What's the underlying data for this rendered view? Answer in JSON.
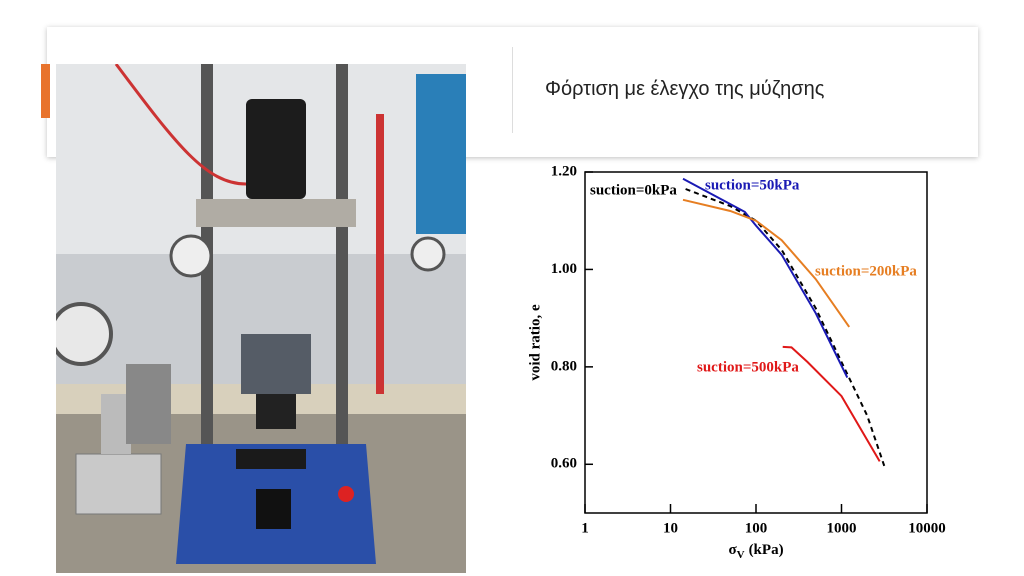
{
  "slide": {
    "title": "Φόρτιση με έλεγχο της μύζησης"
  },
  "chart_data": {
    "type": "line",
    "x_label": {
      "symbol": "σ",
      "subscript": "V",
      "unit": "(kPa)"
    },
    "y_label": "void ratio, e",
    "xscale": "log",
    "xlim": [
      1,
      10000
    ],
    "xticks": [
      1,
      10,
      100,
      1000,
      10000
    ],
    "ylim": [
      0.5,
      1.2
    ],
    "yticks": [
      {
        "value": 0.6,
        "label": "0.60"
      },
      {
        "value": 0.8,
        "label": "0.80"
      },
      {
        "value": 1.0,
        "label": "1.00"
      },
      {
        "value": 1.2,
        "label": "1.20"
      }
    ],
    "series": [
      {
        "name": "suction=0kPa",
        "color": "#000000",
        "dashed": true,
        "x": [
          15,
          50,
          100,
          200,
          500,
          1000,
          2000,
          3200
        ],
        "values": [
          1.165,
          1.13,
          1.1,
          1.04,
          0.92,
          0.81,
          0.7,
          0.594
        ]
      },
      {
        "name": "suction=50kPa",
        "color": "#1a1ab4",
        "dashed": false,
        "x": [
          14,
          74,
          100,
          200,
          500,
          1170
        ],
        "values": [
          1.186,
          1.118,
          1.09,
          1.03,
          0.91,
          0.778
        ]
      },
      {
        "name": "suction=200kPa",
        "color": "#e67e22",
        "dashed": false,
        "x": [
          14,
          50,
          100,
          200,
          500,
          1230
        ],
        "values": [
          1.143,
          1.12,
          1.1,
          1.06,
          0.98,
          0.882
        ]
      },
      {
        "name": "suction=500kPa",
        "color": "#e01818",
        "dashed": false,
        "x": [
          205,
          260,
          400,
          1000,
          2800
        ],
        "values": [
          0.841,
          0.84,
          0.81,
          0.74,
          0.606
        ]
      }
    ]
  }
}
